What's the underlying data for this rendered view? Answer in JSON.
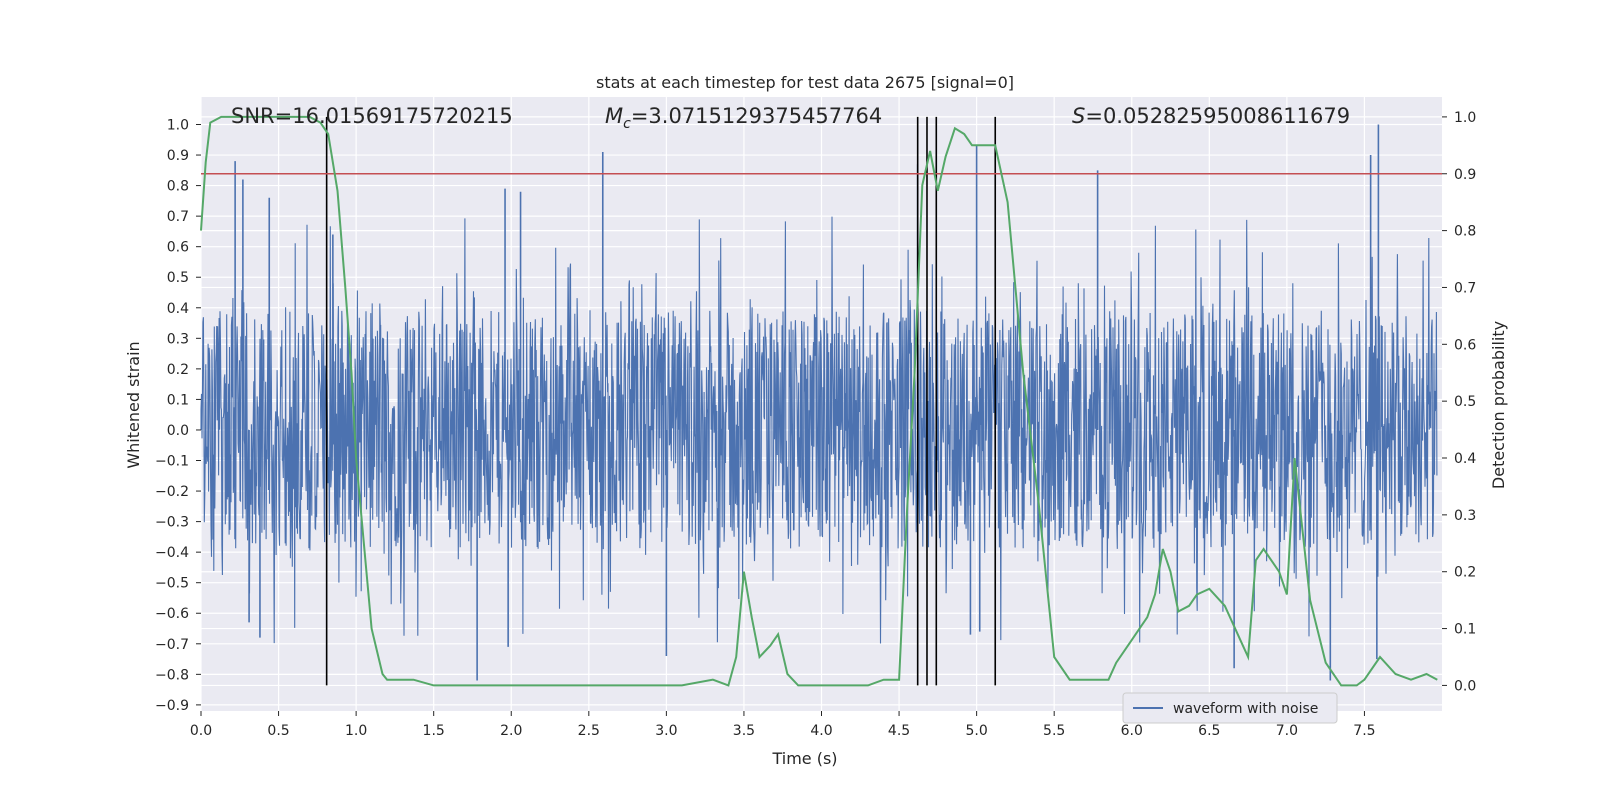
{
  "chart_data": {
    "type": "line",
    "title": "stats at each timestep for test data 2675 [signal=0]",
    "xlabel": "Time (s)",
    "ylabel": "Whitened strain",
    "y2label": "Detection probability",
    "xlim": [
      0.0,
      8.0
    ],
    "ylim": [
      -0.92,
      1.09
    ],
    "y2lim": [
      -0.045,
      1.035
    ],
    "xticks": [
      "0.0",
      "0.5",
      "1.0",
      "1.5",
      "2.0",
      "2.5",
      "3.0",
      "3.5",
      "4.0",
      "4.5",
      "5.0",
      "5.5",
      "6.0",
      "6.5",
      "7.0",
      "7.5"
    ],
    "yticks": [
      "-0.9",
      "-0.8",
      "-0.7",
      "-0.6",
      "-0.5",
      "-0.4",
      "-0.3",
      "-0.2",
      "-0.1",
      "0.0",
      "0.1",
      "0.2",
      "0.3",
      "0.4",
      "0.5",
      "0.6",
      "0.7",
      "0.8",
      "0.9",
      "1.0"
    ],
    "y2ticks": [
      "0.0",
      "0.1",
      "0.2",
      "0.3",
      "0.4",
      "0.5",
      "0.6",
      "0.7",
      "0.8",
      "0.9",
      "1.0"
    ],
    "annotations": {
      "snr_label": "SNR=16.01569175720215",
      "mc_symbol": "M",
      "mc_subscript": "c",
      "mc_value": "=3.0715129375457764",
      "s_symbol": "S",
      "s_value": "=0.05282595008611679"
    },
    "threshold": 0.9,
    "detection_vlines": [
      0.81,
      4.62,
      4.68,
      4.74,
      5.12
    ],
    "legend": [
      "waveform with noise"
    ],
    "series": [
      {
        "name": "waveform with noise",
        "color": "#4c72b0",
        "description": "dense whitened strain noise, ~±0.45 envelope with spikes",
        "spikes": [
          {
            "t": 0.22,
            "v": 0.88
          },
          {
            "t": 0.27,
            "v": 0.82
          },
          {
            "t": 0.44,
            "v": 0.76
          },
          {
            "t": 0.85,
            "v": 0.64
          },
          {
            "t": 1.96,
            "v": 0.79
          },
          {
            "t": 2.06,
            "v": 0.78
          },
          {
            "t": 2.59,
            "v": 0.91
          },
          {
            "t": 4.62,
            "v": 0.87
          },
          {
            "t": 5.0,
            "v": 0.93
          },
          {
            "t": 5.78,
            "v": 0.85
          },
          {
            "t": 7.54,
            "v": 0.9
          },
          {
            "t": 7.59,
            "v": 1.0
          },
          {
            "t": 0.31,
            "v": -0.63
          },
          {
            "t": 0.38,
            "v": -0.68
          },
          {
            "t": 1.78,
            "v": -0.82
          },
          {
            "t": 1.98,
            "v": -0.71
          },
          {
            "t": 3.0,
            "v": -0.74
          },
          {
            "t": 4.96,
            "v": -0.67
          },
          {
            "t": 5.02,
            "v": -0.66
          },
          {
            "t": 6.66,
            "v": -0.78
          },
          {
            "t": 7.28,
            "v": -0.82
          },
          {
            "t": 7.58,
            "v": -0.75
          }
        ]
      },
      {
        "name": "Detection probability",
        "color": "#55a868",
        "axis": "right",
        "x": [
          0.0,
          0.03,
          0.06,
          0.13,
          0.3,
          0.5,
          0.7,
          0.77,
          0.82,
          0.88,
          0.93,
          0.97,
          1.0,
          1.1,
          1.17,
          1.2,
          1.3,
          1.37,
          1.5,
          1.7,
          1.9,
          2.1,
          2.3,
          2.5,
          2.7,
          2.9,
          3.1,
          3.3,
          3.4,
          3.45,
          3.5,
          3.55,
          3.6,
          3.67,
          3.72,
          3.78,
          3.85,
          3.9,
          4.0,
          4.1,
          4.2,
          4.3,
          4.4,
          4.5,
          4.55,
          4.6,
          4.65,
          4.7,
          4.75,
          4.8,
          4.86,
          4.92,
          4.97,
          5.05,
          5.12,
          5.2,
          5.3,
          5.4,
          5.5,
          5.6,
          5.7,
          5.8,
          5.85,
          5.9,
          6.0,
          6.1,
          6.15,
          6.2,
          6.25,
          6.3,
          6.37,
          6.42,
          6.5,
          6.6,
          6.7,
          6.75,
          6.8,
          6.85,
          6.95,
          7.0,
          7.05,
          7.15,
          7.25,
          7.35,
          7.45,
          7.5,
          7.6,
          7.7,
          7.8,
          7.9,
          7.97
        ],
        "y": [
          0.8,
          0.92,
          0.99,
          1.0,
          1.0,
          1.0,
          1.0,
          0.99,
          0.97,
          0.87,
          0.7,
          0.55,
          0.4,
          0.1,
          0.02,
          0.01,
          0.01,
          0.01,
          0.0,
          0.0,
          0.0,
          0.0,
          0.0,
          0.0,
          0.0,
          0.0,
          0.0,
          0.01,
          0.0,
          0.05,
          0.2,
          0.12,
          0.05,
          0.07,
          0.09,
          0.02,
          0.0,
          0.0,
          0.0,
          0.0,
          0.0,
          0.0,
          0.01,
          0.01,
          0.3,
          0.55,
          0.88,
          0.94,
          0.87,
          0.93,
          0.98,
          0.97,
          0.95,
          0.95,
          0.95,
          0.85,
          0.55,
          0.32,
          0.05,
          0.01,
          0.01,
          0.01,
          0.01,
          0.04,
          0.08,
          0.12,
          0.16,
          0.24,
          0.2,
          0.13,
          0.14,
          0.16,
          0.17,
          0.14,
          0.08,
          0.05,
          0.22,
          0.24,
          0.2,
          0.16,
          0.4,
          0.15,
          0.04,
          0.0,
          0.0,
          0.01,
          0.05,
          0.02,
          0.01,
          0.02,
          0.01
        ]
      },
      {
        "name": "threshold",
        "color": "#c44e52",
        "axis": "right"
      }
    ]
  }
}
